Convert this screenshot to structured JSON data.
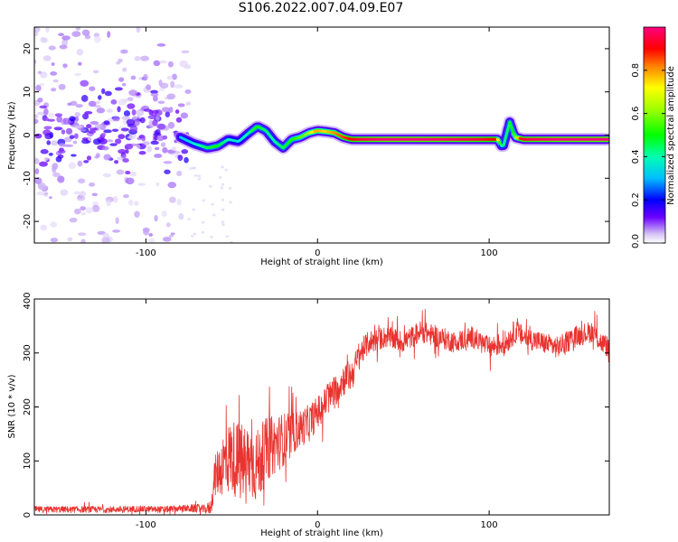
{
  "figure": {
    "title": "S106.2022.007.04.09.E07"
  },
  "chart_data": [
    {
      "type": "heatmap",
      "title": "",
      "xlabel": "Height of straight line (km)",
      "ylabel": "Frequency (Hz)",
      "xlim": [
        -165,
        170
      ],
      "ylim": [
        -25,
        25
      ],
      "xticks": [
        -100,
        0,
        100
      ],
      "xtick_labels": [
        "-100",
        "0",
        "100"
      ],
      "yticks": [
        -20,
        -10,
        0,
        10,
        20
      ],
      "ytick_labels": [
        "-20",
        "-10",
        "0",
        "10",
        "20"
      ],
      "grid": false,
      "colorbar": {
        "label": "Normalized spectral amplitude",
        "range": [
          0,
          1
        ],
        "ticks": [
          0.0,
          0.2,
          0.4,
          0.6,
          0.8
        ],
        "tick_labels": [
          "0.0",
          "0.2",
          "0.4",
          "0.6",
          "0.8"
        ],
        "colormap": "hsv-rainbow"
      },
      "frequency_track": {
        "description_points_x": [
          -80,
          -72,
          -64,
          -58,
          -52,
          -46,
          -40,
          -35,
          -30,
          -25,
          -20,
          -15,
          -10,
          -5,
          0,
          5,
          10,
          15,
          20,
          25,
          40,
          60,
          80,
          95,
          105,
          108,
          112,
          115,
          120,
          140,
          170
        ],
        "description_points_y": [
          -0.5,
          -2,
          -3,
          -2.5,
          -1,
          -1.5,
          0.5,
          2,
          1,
          -1.5,
          -3,
          -1,
          -0.5,
          0.5,
          1,
          0.8,
          0.5,
          -0.5,
          -1,
          -1,
          -1,
          -1,
          -1,
          -1,
          -1,
          -3,
          3,
          -0.5,
          -1,
          -1,
          -1
        ],
        "amplitude": [
          0.3,
          0.35,
          0.45,
          0.5,
          0.4,
          0.35,
          0.4,
          0.5,
          0.45,
          0.4,
          0.45,
          0.5,
          0.55,
          0.6,
          0.8,
          0.75,
          0.8,
          0.85,
          0.9,
          0.95,
          1.0,
          1.0,
          0.98,
          0.95,
          0.9,
          0.4,
          0.45,
          0.5,
          0.95,
          1.0,
          1.0
        ],
        "noise_region_x": [
          -165,
          -75
        ],
        "noise_band_hz": [
          -25,
          25
        ]
      }
    },
    {
      "type": "line",
      "title": "",
      "xlabel": "Height of straight line (km)",
      "ylabel": "SNR (10 * v/v)",
      "xlim": [
        -165,
        170
      ],
      "ylim": [
        0,
        400
      ],
      "xticks": [
        -100,
        0,
        100
      ],
      "xtick_labels": [
        "-100",
        "0",
        "100"
      ],
      "yticks": [
        0,
        100,
        200,
        300,
        400
      ],
      "ytick_labels": [
        "0",
        "100",
        "200",
        "300",
        "400"
      ],
      "grid": false,
      "series": [
        {
          "color": "#e8332f",
          "x": [
            -165,
            -150,
            -135,
            -120,
            -105,
            -90,
            -80,
            -70,
            -65,
            -62,
            -60,
            -55,
            -50,
            -45,
            -40,
            -35,
            -30,
            -25,
            -20,
            -15,
            -10,
            -5,
            0,
            5,
            10,
            15,
            20,
            25,
            30,
            40,
            50,
            60,
            70,
            80,
            90,
            100,
            110,
            115,
            120,
            130,
            140,
            150,
            160,
            165,
            170
          ],
          "y": [
            10,
            10,
            10,
            10,
            11,
            10,
            12,
            12,
            10,
            15,
            70,
            95,
            110,
            95,
            100,
            90,
            120,
            130,
            140,
            150,
            160,
            170,
            190,
            210,
            230,
            250,
            260,
            300,
            320,
            330,
            320,
            340,
            330,
            320,
            330,
            310,
            320,
            340,
            330,
            320,
            310,
            330,
            340,
            320,
            310
          ],
          "noise_envelope": [
            6,
            6,
            6,
            6,
            6,
            6,
            6,
            8,
            8,
            15,
            35,
            60,
            70,
            75,
            70,
            70,
            60,
            55,
            50,
            40,
            35,
            35,
            30,
            30,
            30,
            30,
            30,
            25,
            22,
            20,
            20,
            20,
            20,
            20,
            20,
            20,
            22,
            22,
            20,
            20,
            20,
            20,
            20,
            20,
            20
          ]
        }
      ]
    }
  ]
}
